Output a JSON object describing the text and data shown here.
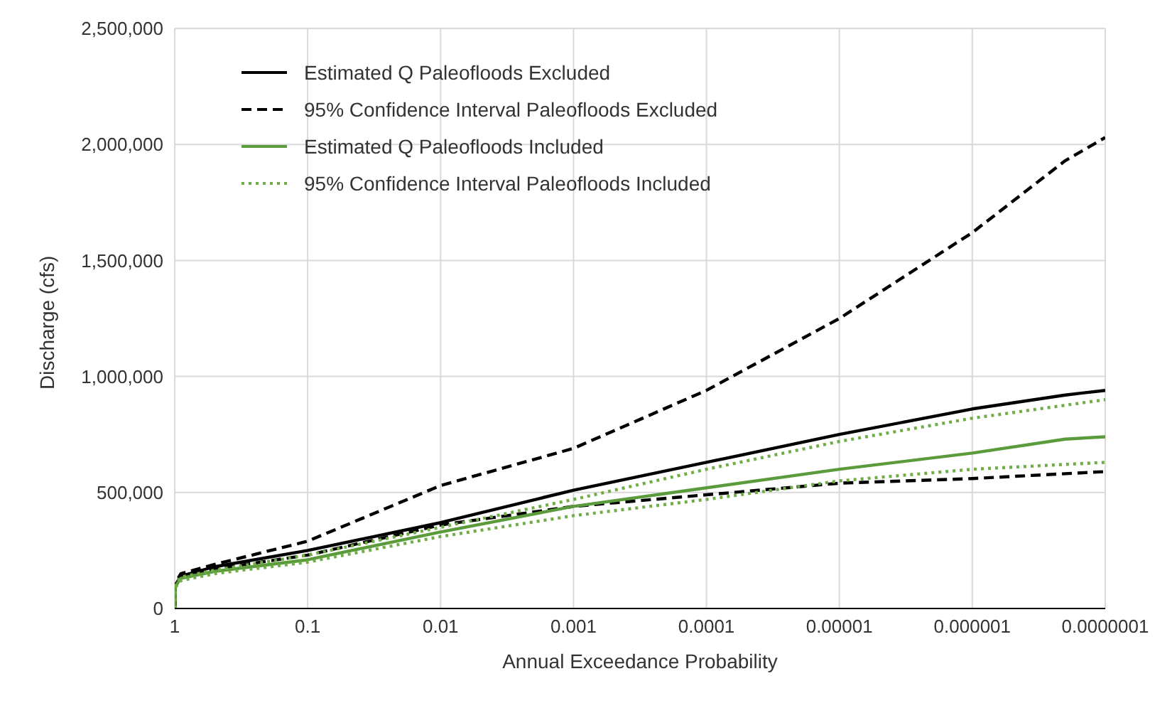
{
  "chart_data": {
    "type": "line",
    "xlabel": "Annual Exceedance Probability",
    "ylabel": "Discharge (cfs)",
    "log": "x",
    "grid": true,
    "legend": "top left",
    "marker": "none",
    "xlim": [
      1,
      1e-07
    ],
    "xticks": [
      1,
      0.1,
      0.01,
      0.001,
      0.0001,
      {
        "value": 1e-05,
        "label": "0.00001"
      },
      {
        "value": 1e-06,
        "label": "0.000001"
      },
      {
        "value": 1e-07,
        "label": "0.0000001"
      }
    ],
    "ylim": [
      0,
      2500000
    ],
    "yticks": [
      0,
      {
        "value": 500000,
        "label": "500,000"
      },
      {
        "value": 1000000,
        "label": "1,000,000"
      },
      {
        "value": 1500000,
        "label": "1,500,000"
      },
      {
        "value": 2000000,
        "label": "2,000,000"
      },
      {
        "value": 2500000,
        "label": "2,500,000"
      }
    ],
    "series": [
      {
        "name": "Estimated Q Paleofloods Excluded",
        "color": "#000000",
        "line_style": "solid",
        "x": [
          1,
          0.99,
          0.9,
          0.5,
          0.1,
          0.01,
          0.001,
          0.0001,
          1e-05,
          1e-06,
          2e-07,
          1e-07
        ],
        "values": [
          0,
          100000,
          140000,
          180000,
          250000,
          370000,
          510000,
          630000,
          750000,
          860000,
          920000,
          940000
        ]
      },
      {
        "name": "95% Confidence Interval Paleofloods Excluded",
        "color": "#000000",
        "line_style": "dashed",
        "x": [
          1,
          0.99,
          0.9,
          0.5,
          0.1,
          0.01,
          0.001,
          0.0001,
          1e-05,
          1e-06,
          2e-07,
          1e-07
        ],
        "values": [
          0,
          110000,
          150000,
          190000,
          290000,
          530000,
          690000,
          940000,
          1250000,
          1620000,
          1930000,
          2030000
        ]
      },
      {
        "color": "#000000",
        "line_style": "dashed",
        "x": [
          1,
          0.99,
          0.9,
          0.5,
          0.1,
          0.01,
          0.001,
          0.0001,
          1e-05,
          1e-06,
          1e-07
        ],
        "values": [
          0,
          100000,
          135000,
          170000,
          230000,
          360000,
          440000,
          490000,
          540000,
          560000,
          590000
        ]
      },
      {
        "name": "Estimated Q Paleofloods Included",
        "color": "#5b9b3c",
        "line_style": "solid",
        "x": [
          1,
          0.99,
          0.9,
          0.5,
          0.1,
          0.01,
          0.001,
          0.0001,
          1e-05,
          1e-06,
          2e-07,
          1e-07
        ],
        "values": [
          0,
          95000,
          130000,
          160000,
          210000,
          330000,
          440000,
          520000,
          600000,
          670000,
          730000,
          740000
        ]
      },
      {
        "name": "95% Confidence Interval Paleofloods Included",
        "color": "#70ad47",
        "line_style": "dotted",
        "x": [
          1,
          0.99,
          0.9,
          0.5,
          0.1,
          0.01,
          0.001,
          0.0001,
          1e-05,
          1e-06,
          1e-07
        ],
        "values": [
          0,
          100000,
          135000,
          165000,
          230000,
          350000,
          470000,
          600000,
          720000,
          820000,
          900000
        ]
      },
      {
        "color": "#70ad47",
        "line_style": "dotted",
        "x": [
          1,
          0.99,
          0.9,
          0.5,
          0.1,
          0.01,
          0.001,
          0.0001,
          1e-05,
          1e-06,
          1e-07
        ],
        "values": [
          0,
          90000,
          120000,
          150000,
          200000,
          310000,
          400000,
          470000,
          550000,
          600000,
          630000
        ]
      }
    ]
  }
}
